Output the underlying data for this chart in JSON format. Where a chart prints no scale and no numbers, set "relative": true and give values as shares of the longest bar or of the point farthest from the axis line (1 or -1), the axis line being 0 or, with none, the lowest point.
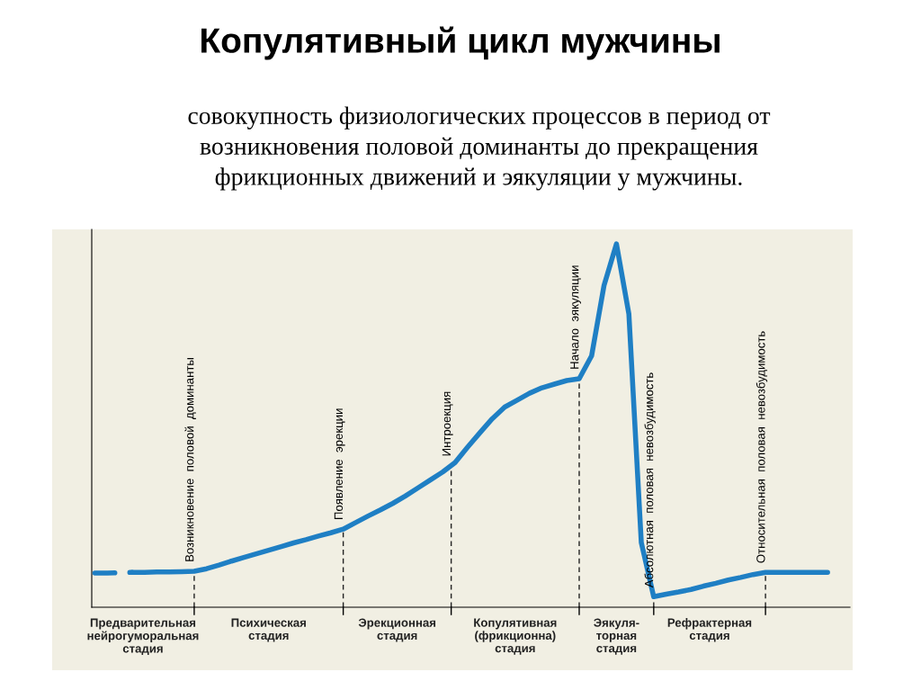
{
  "chart_data": {
    "type": "line",
    "relative": true,
    "title": "Копулятивный цикл мужчины",
    "subtitle": "совокупность физиологических процессов в период от\nвозникновения половой доминанты до прекращения\nфрикционных движений и эякуляции у мужчины.",
    "categories": [
      null,
      null,
      null,
      null,
      null,
      null,
      null,
      null,
      null,
      null,
      null,
      null,
      null,
      null,
      null,
      null,
      null,
      null,
      null,
      null,
      null,
      null,
      null,
      null,
      null,
      null,
      null,
      null,
      null,
      null,
      null,
      null,
      null,
      null,
      null,
      null,
      null,
      null,
      null,
      null,
      null,
      null,
      null,
      null,
      null,
      null,
      null,
      null,
      null,
      null,
      null,
      null,
      null,
      null,
      null,
      null,
      null,
      null,
      null,
      null
    ],
    "series": [
      {
        "color": "#1f7fc4",
        "line_style": "dashed",
        "values": [
          0.094,
          0.094,
          0.095,
          0.096,
          null,
          null,
          null,
          null,
          null,
          null,
          null,
          null,
          null,
          null,
          null,
          null,
          null,
          null,
          null,
          null,
          null,
          null,
          null,
          null,
          null,
          null,
          null,
          null,
          null,
          null,
          null,
          null,
          null,
          null,
          null,
          null,
          null,
          null,
          null,
          null,
          null,
          null,
          null,
          null,
          null,
          null,
          null,
          null,
          null,
          null,
          null,
          null,
          null,
          null,
          null,
          null,
          null,
          null,
          null,
          null
        ]
      },
      {
        "color": "#1f7fc4",
        "line_style": "solid",
        "values": [
          null,
          null,
          null,
          0.096,
          0.096,
          0.097,
          0.097,
          0.098,
          0.099,
          0.106,
          0.116,
          0.127,
          0.137,
          0.147,
          0.157,
          0.167,
          0.177,
          0.186,
          0.196,
          0.205,
          0.215,
          0.233,
          0.251,
          0.268,
          0.286,
          0.306,
          0.328,
          0.35,
          0.372,
          0.398,
          0.44,
          0.48,
          0.519,
          0.551,
          0.57,
          0.589,
          0.604,
          0.614,
          0.624,
          0.629,
          0.692,
          0.886,
          1,
          0.807,
          0.178,
          0.029,
          0.036,
          0.042,
          0.049,
          0.058,
          0.066,
          0.075,
          0.082,
          0.09,
          0.096,
          0.096,
          0.096,
          0.096,
          0.096,
          0.096
        ]
      }
    ],
    "annotations": [
      {
        "text": "Возникновение  половой  доминанты",
        "y": 0.099
      },
      {
        "text": "Появление  эрекции",
        "y": 0.215
      },
      {
        "text": "Интроекция",
        "y": 0.39
      },
      {
        "text": "Начало  эякуляции",
        "y": 0.629
      },
      {
        "text": "Абсолютная  половая  невозбудимость",
        "y": 0.029
      },
      {
        "text": "Относительная  половая  невозбудимость",
        "y": 0.096
      },
      "Предварительная\nнейрогуморальная\nстадия",
      "Психическая\nстадия",
      "Эрекционная\nстадия",
      "Копулятивная\n(фрикционна)\nстадия",
      "Эякуля-\nторная\nстадия",
      "Рефрактерная\nстадия"
    ]
  }
}
